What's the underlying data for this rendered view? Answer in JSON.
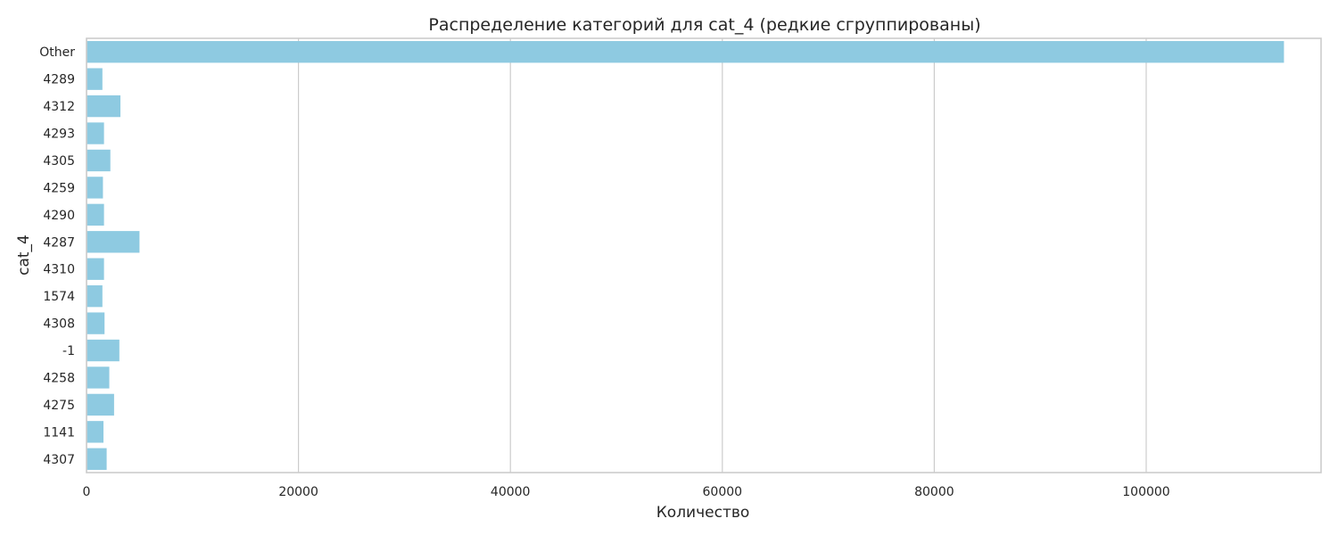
{
  "chart_data": {
    "type": "bar",
    "orientation": "horizontal",
    "title": "Распределение категорий для cat_4 (редкие сгруппированы)",
    "xlabel": "Количество",
    "ylabel": "cat_4",
    "categories": [
      "Other",
      "4289",
      "4312",
      "4293",
      "4305",
      "4259",
      "4290",
      "4287",
      "4310",
      "1574",
      "4308",
      "-1",
      "4258",
      "4275",
      "1141",
      "4307"
    ],
    "values": [
      113000,
      1500,
      3200,
      1650,
      2250,
      1550,
      1650,
      5000,
      1650,
      1500,
      1700,
      3100,
      2150,
      2600,
      1600,
      1900
    ],
    "xlim": [
      0,
      116500
    ],
    "xticks": [
      0,
      20000,
      40000,
      60000,
      80000,
      100000
    ],
    "grid": "vertical",
    "bar_color": "#8ecae1"
  }
}
